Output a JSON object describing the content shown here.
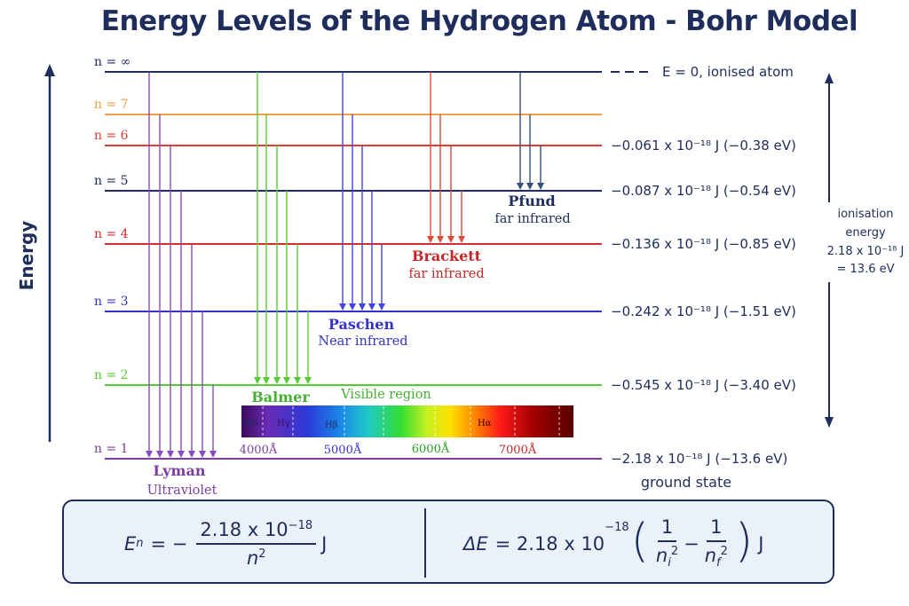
{
  "title": "Energy Levels of the Hydrogen Atom - Bohr Model",
  "axis_label": "Energy",
  "levels": [
    {
      "label": "n = ∞",
      "color": "#1e2d5c",
      "energy": "E = 0, ionised atom",
      "dashed": true
    },
    {
      "label": "n = 7",
      "color": "#f0a040",
      "energy": ""
    },
    {
      "label": "n = 6",
      "color": "#e53935",
      "energy": "−0.061 x 10⁻¹⁸ J (−0.38 eV)"
    },
    {
      "label": "n = 5",
      "color": "#1e2d5c",
      "energy": "−0.087 x 10⁻¹⁸ J (−0.54 eV)"
    },
    {
      "label": "n = 4",
      "color": "#d32f2f",
      "energy": "−0.136 x 10⁻¹⁸ J (−0.85 eV)"
    },
    {
      "label": "n = 3",
      "color": "#3333cc",
      "energy": "−0.242 x 10⁻¹⁸ J (−1.51 eV)"
    },
    {
      "label": "n = 2",
      "color": "#55cc33",
      "energy": "−0.545 x 10⁻¹⁸ J (−3.40 eV)"
    },
    {
      "label": "n = 1",
      "color": "#7b3fa0",
      "energy": "−2.18 x 10⁻¹⁸ J (−13.6 eV)"
    }
  ],
  "ground_state": "ground state",
  "ionisation": {
    "line1": "ionisation",
    "line2": "energy",
    "line3": "2.18 x 10⁻¹⁸ J",
    "line4": "= 13.6 eV"
  },
  "series": [
    {
      "name": "Lyman",
      "sub": "Ultraviolet",
      "color": "#7b3fa0",
      "final_n": 1
    },
    {
      "name": "Balmer",
      "sub": "Visible region",
      "color": "#55cc33",
      "final_n": 2
    },
    {
      "name": "Paschen",
      "sub": "Near infrared",
      "color": "#3333cc",
      "final_n": 3
    },
    {
      "name": "Brackett",
      "sub": "far infrared",
      "color": "#d32f2f",
      "final_n": 4
    },
    {
      "name": "Pfund",
      "sub": "far infrared",
      "color": "#1e2d5c",
      "final_n": 5
    }
  ],
  "spectrum": {
    "lines": [
      "Hδ",
      "Hγ",
      "Hβ",
      "Hα"
    ],
    "wavelengths": [
      "4000Å",
      "5000Å",
      "6000Å",
      "7000Å"
    ]
  },
  "formulas": {
    "en_lhs": "E",
    "en_sub": "n",
    "en_eq": "= −",
    "en_num": "2.18 x 10",
    "en_num_exp": "−18",
    "en_den": "n",
    "en_den_exp": "2",
    "en_unit": "J",
    "de_lhs": "ΔE",
    "de_eq": "= 2.18 x 10",
    "de_exp": "−18",
    "de_num1": "1",
    "de_den1": "n",
    "de_den1_sub": "i",
    "de_den1_exp": "2",
    "de_minus": "−",
    "de_num2": "1",
    "de_den2": "n",
    "de_den2_sub": "f",
    "de_den2_exp": "2",
    "de_unit": "J"
  }
}
